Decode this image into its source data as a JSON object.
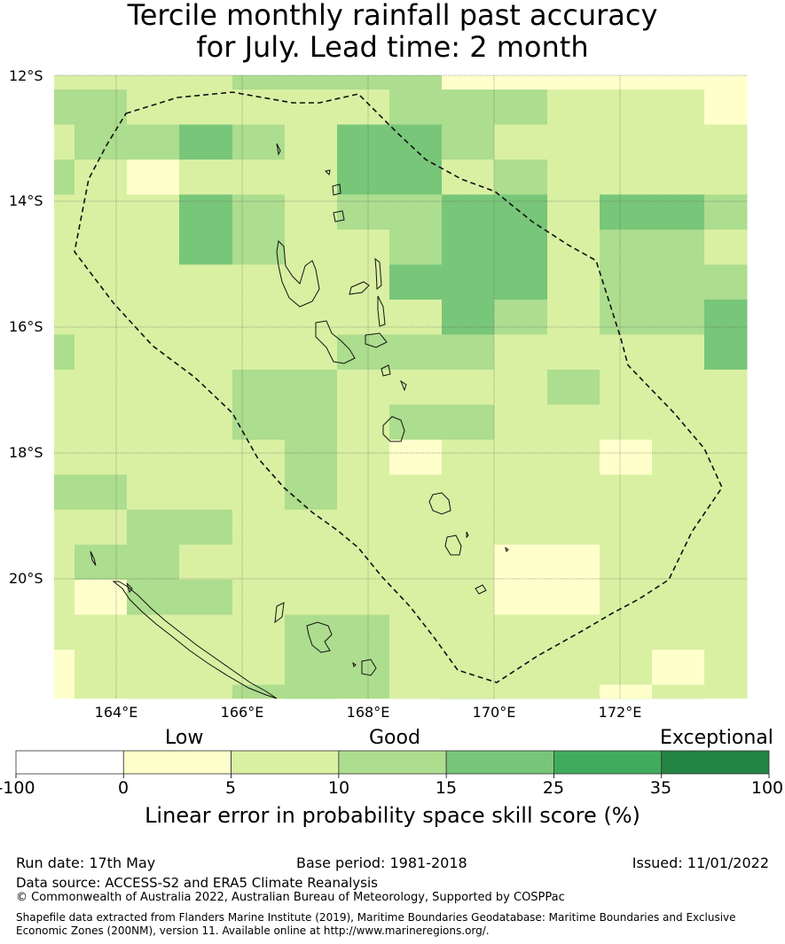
{
  "title_line1": "Tercile monthly rainfall past accuracy",
  "title_line2": "for July. Lead time: 2 month",
  "lat_ticks": [
    "12°S",
    "14°S",
    "16°S",
    "18°S",
    "20°S"
  ],
  "lon_ticks": [
    "164°E",
    "166°E",
    "168°E",
    "170°E",
    "172°E"
  ],
  "colorbar": {
    "category_labels": [
      "Low",
      "Good",
      "Exceptional"
    ],
    "tick_labels": [
      "-100",
      "0",
      "5",
      "10",
      "15",
      "25",
      "35",
      "100"
    ],
    "title": "Linear error in probability space skill score (%)",
    "colors": [
      "#ffffff",
      "#ffffcc",
      "#d9f0a3",
      "#addd8e",
      "#78c679",
      "#41ab5d",
      "#238443"
    ]
  },
  "map": {
    "level_colors": [
      "#ffffcc",
      "#d9f0a3",
      "#addd8e",
      "#78c679"
    ],
    "grid_levels": [
      "11112222000000",
      "22111112221110",
      "12232133211111",
      "21011133121111",
      "11132122331332",
      "11132112331221",
      "11111113331222",
      "11111111321223",
      "21111122211113",
      "11112211112111",
      "11112212211111",
      "11111210111011",
      "22111211111111",
      "11221111111111",
      "12211111100111",
      "10221111100111",
      "11111221111111",
      "01111221111101",
      "01112221111011",
      "01112211111110",
      "00111211211110"
    ]
  },
  "footer": {
    "run_date": "Run date: 17th May",
    "base_period": "Base period: 1981-2018",
    "issued": "Issued: 11/01/2022",
    "data_source": "Data source: ACCESS-S2 and ERA5 Climate Reanalysis",
    "copyright": "© Commonwealth of Australia 2022, Australian Bureau of Meteorology, Supported by COSPPac",
    "shapefile_note": "Shapefile data extracted from Flanders Marine Institute (2019), Maritime Boundaries Geodatabase: Maritime Boundaries and Exclusive Economic Zones (200NM), version 11. Available online at http://www.marineregions.org/."
  }
}
